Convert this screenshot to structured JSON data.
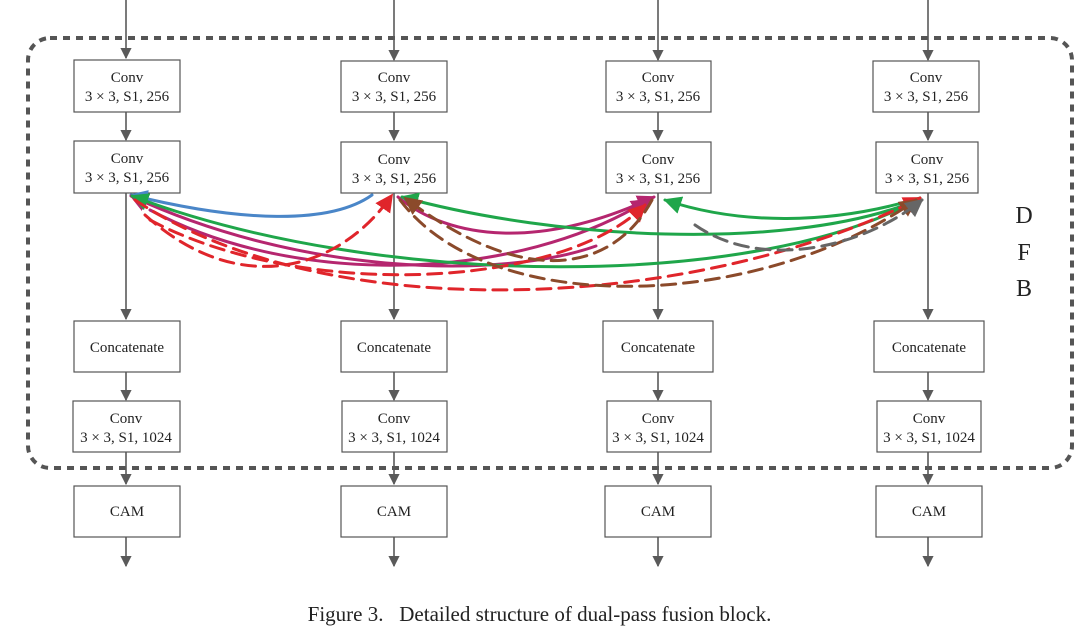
{
  "columns": [
    {
      "conv1": {
        "line1": "Conv",
        "line2": "3 × 3, S1, 256"
      },
      "conv2": {
        "line1": "Conv",
        "line2": "3 × 3, S1, 256"
      },
      "concat": "Concatenate",
      "conv3": {
        "line1": "Conv",
        "line2": "3 × 3, S1, 1024"
      },
      "cam": "CAM"
    },
    {
      "conv1": {
        "line1": "Conv",
        "line2": "3 × 3, S1, 256"
      },
      "conv2": {
        "line1": "Conv",
        "line2": "3 × 3, S1, 256"
      },
      "concat": "Concatenate",
      "conv3": {
        "line1": "Conv",
        "line2": "3 × 3, S1, 1024"
      },
      "cam": "CAM"
    },
    {
      "conv1": {
        "line1": "Conv",
        "line2": "3 × 3, S1, 256"
      },
      "conv2": {
        "line1": "Conv",
        "line2": "3 × 3, S1, 256"
      },
      "concat": "Concatenate",
      "conv3": {
        "line1": "Conv",
        "line2": "3 × 3, S1, 1024"
      },
      "cam": "CAM"
    },
    {
      "conv1": {
        "line1": "Conv",
        "line2": "3 × 3, S1, 256"
      },
      "conv2": {
        "line1": "Conv",
        "line2": "3 × 3, S1, 256"
      },
      "concat": "Concatenate",
      "conv3": {
        "line1": "Conv",
        "line2": "3 × 3, S1, 1024"
      },
      "cam": "CAM"
    }
  ],
  "block_label": [
    "D",
    "F",
    "B"
  ],
  "caption": "Figure 3.   Detailed structure of dual-pass fusion block.",
  "colors": {
    "arrow": "#5a5a5a",
    "box_border": "#555555",
    "dashed_border": "#555555",
    "blue": "#4a86c8",
    "magenta": "#b5266f",
    "green": "#1fa64a",
    "red_dashed": "#e0252b",
    "brown_dashed": "#8b4a2b",
    "gray_dashed": "#666666"
  }
}
